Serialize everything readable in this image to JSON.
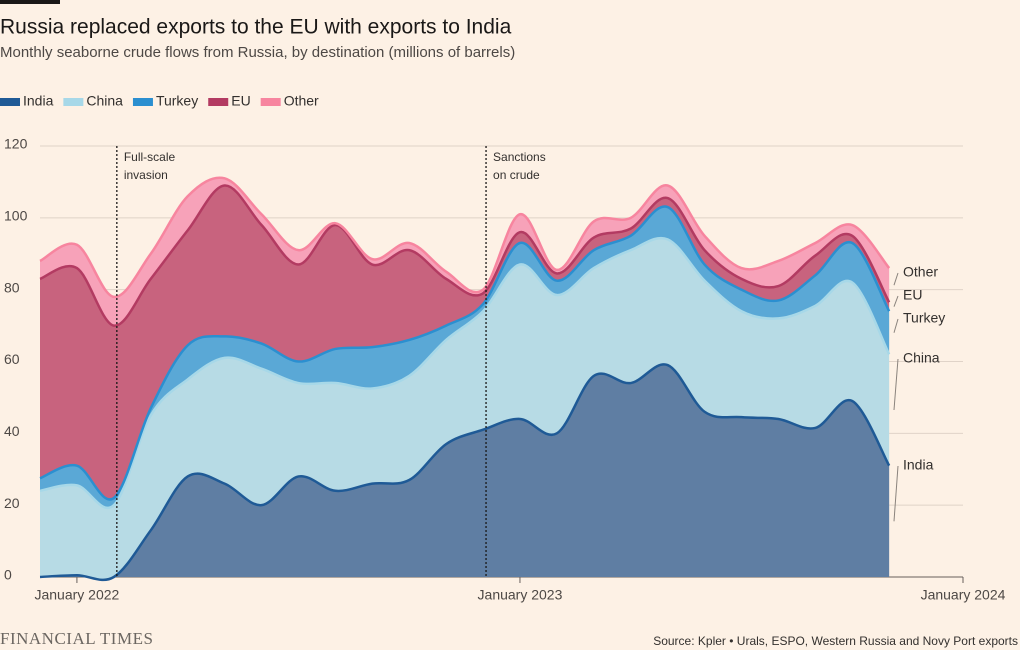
{
  "chart_data": {
    "type": "stacked_area",
    "title": "Russia replaced exports to the EU with exports to India",
    "subtitle": "Monthly seaborne crude flows from Russia, by destination (millions of barrels)",
    "source": "Source: Kpler • Urals, ESPO, Western Russia and Novy Port exports",
    "brand": "FINANCIAL TIMES",
    "x": [
      "2021-12",
      "2022-01",
      "2022-02",
      "2022-03",
      "2022-04",
      "2022-05",
      "2022-06",
      "2022-07",
      "2022-08",
      "2022-09",
      "2022-10",
      "2022-11",
      "2022-12",
      "2023-01",
      "2023-02",
      "2023-03",
      "2023-04",
      "2023-05",
      "2023-06",
      "2023-07",
      "2023-08",
      "2023-09",
      "2023-10",
      "2023-11"
    ],
    "xlim": [
      "2021-12",
      "2024-01"
    ],
    "xticks": [
      {
        "value": "2022-01",
        "label": "January 2022"
      },
      {
        "value": "2023-01",
        "label": "January 2023"
      },
      {
        "value": "2024-01",
        "label": "January 2024"
      }
    ],
    "ylim": [
      0,
      120
    ],
    "yticks": [
      0,
      20,
      40,
      60,
      80,
      100,
      120
    ],
    "grid": true,
    "legend": "top-left",
    "series": [
      {
        "name": "India",
        "color": "#1f5a96",
        "fill": "#5f7ea3",
        "values": [
          0,
          0.5,
          0,
          13,
          28,
          26,
          20,
          28,
          24,
          26,
          27,
          37,
          41,
          44,
          40,
          56,
          54,
          59,
          46,
          44.5,
          44,
          41.5,
          49,
          31
        ]
      },
      {
        "name": "China",
        "color": "#a7d8e8",
        "fill": "#b7dbe5",
        "values": [
          24,
          25,
          20,
          32,
          27,
          35,
          38,
          26,
          30,
          26.5,
          29,
          29,
          33,
          43,
          38.5,
          30,
          37,
          35,
          36.5,
          29.5,
          28,
          34,
          33,
          31
        ]
      },
      {
        "name": "Turkey",
        "color": "#2b8fd0",
        "fill": "#5aa8d6",
        "values": [
          3.5,
          5.5,
          2,
          2,
          9.5,
          6,
          7,
          6,
          9.5,
          11.5,
          10,
          4,
          2,
          6,
          4,
          5,
          4,
          9,
          4.5,
          6,
          5,
          8.5,
          11,
          12
        ]
      },
      {
        "name": "EU",
        "color": "#b33b62",
        "fill": "#c8637e",
        "values": [
          55.5,
          55,
          48,
          36,
          32,
          42,
          33,
          27,
          34.5,
          23,
          25,
          13,
          3,
          3,
          2,
          3.5,
          2,
          2.5,
          4,
          3,
          4,
          5.5,
          2,
          2.5
        ]
      },
      {
        "name": "Other",
        "color": "#f7859f",
        "fill": "#f7a2b9",
        "values": [
          5,
          6.5,
          8,
          7,
          9.5,
          2,
          3,
          4,
          0.5,
          1.5,
          2,
          2,
          1,
          5,
          1,
          4.5,
          3,
          3.5,
          4,
          3,
          7,
          3.5,
          3,
          9.5
        ]
      }
    ],
    "annotations": [
      {
        "x": "2022-02",
        "text": [
          "Full-scale",
          "invasion"
        ]
      },
      {
        "x": "2022-12",
        "text": [
          "Sanctions",
          "on crude"
        ]
      }
    ]
  }
}
